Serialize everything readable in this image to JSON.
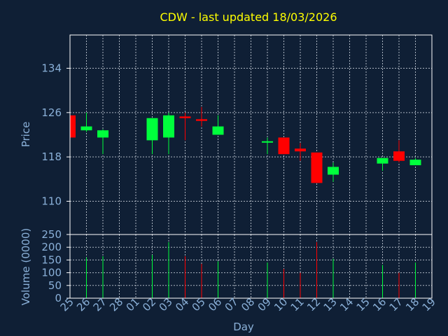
{
  "chart_data": {
    "type": "candlestick",
    "title": "CDW - last updated 18/03/2026",
    "xlabel": "Day",
    "ylabel": "Price",
    "ylabel_volume": "Volume (0000)",
    "x_ticks": [
      "25",
      "26",
      "27",
      "28",
      "01",
      "02",
      "03",
      "04",
      "05",
      "06",
      "07",
      "08",
      "09",
      "10",
      "11",
      "12",
      "13",
      "14",
      "15",
      "16",
      "17",
      "18",
      "19"
    ],
    "price_ticks": [
      110,
      118,
      126,
      134
    ],
    "price_ylim": [
      104,
      140
    ],
    "volume_ticks": [
      0,
      50,
      100,
      150,
      200,
      250
    ],
    "volume_ylim": [
      0,
      250
    ],
    "grid": true,
    "colors": {
      "up": "#00ff3c",
      "down": "#ff0000",
      "background": "#0f1f35",
      "title": "#ffff00",
      "axis": "#8ab0d8"
    },
    "candles": [
      {
        "day": "25",
        "open": 125.5,
        "high": 126.0,
        "low": 121.5,
        "close": 121.5,
        "volume": 0
      },
      {
        "day": "26",
        "open": 122.8,
        "high": 126.0,
        "low": 122.5,
        "close": 123.5,
        "volume": 160
      },
      {
        "day": "27",
        "open": 121.5,
        "high": 123.0,
        "low": 118.5,
        "close": 122.8,
        "volume": 165
      },
      {
        "day": "02",
        "open": 121.0,
        "high": 125.0,
        "low": 118.5,
        "close": 125.0,
        "volume": 170
      },
      {
        "day": "03",
        "open": 121.5,
        "high": 126.0,
        "low": 118.5,
        "close": 125.5,
        "volume": 220
      },
      {
        "day": "04",
        "open": 125.3,
        "high": 126.0,
        "low": 121.0,
        "close": 125.0,
        "volume": 165
      },
      {
        "day": "05",
        "open": 124.8,
        "high": 127.0,
        "low": 123.5,
        "close": 124.5,
        "volume": 135
      },
      {
        "day": "06",
        "open": 122.0,
        "high": 125.5,
        "low": 122.0,
        "close": 123.5,
        "volume": 145
      },
      {
        "day": "09",
        "open": 120.5,
        "high": 121.5,
        "low": 118.5,
        "close": 120.7,
        "volume": 140
      },
      {
        "day": "10",
        "open": 121.5,
        "high": 121.5,
        "low": 118.5,
        "close": 118.5,
        "volume": 115
      },
      {
        "day": "11",
        "open": 119.5,
        "high": 120.5,
        "low": 117.3,
        "close": 119.0,
        "volume": 100
      },
      {
        "day": "12",
        "open": 118.8,
        "high": 118.8,
        "low": 113.3,
        "close": 113.3,
        "volume": 220
      },
      {
        "day": "13",
        "open": 114.8,
        "high": 117.0,
        "low": 113.5,
        "close": 116.2,
        "volume": 155
      },
      {
        "day": "16",
        "open": 116.8,
        "high": 117.8,
        "low": 115.5,
        "close": 117.8,
        "volume": 130
      },
      {
        "day": "17",
        "open": 119.0,
        "high": 121.0,
        "low": 117.0,
        "close": 117.3,
        "volume": 100
      },
      {
        "day": "18",
        "open": 116.5,
        "high": 117.8,
        "low": 116.5,
        "close": 117.5,
        "volume": 140
      }
    ]
  }
}
